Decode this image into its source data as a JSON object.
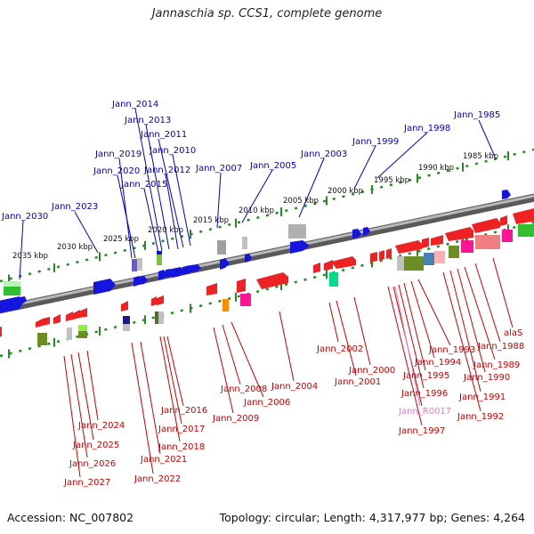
{
  "title": "Jannaschia sp. CCS1, complete genome",
  "footer": {
    "accession": "Accession: NC_007802",
    "stats": "Topology: circular; Length: 4,317,977 bp; Genes: 4,264"
  },
  "colors": {
    "backbone": "#8a8a8a",
    "ruler": "#228b22",
    "forward_label": "#0000cc",
    "reverse_label": "#cc0000",
    "rna_label": "#e080c0"
  },
  "ruler_labels": [
    "2035 kbp",
    "2030 kbp",
    "2025 kbp",
    "2020 kbp",
    "2015 kbp",
    "2010 kbp",
    "2005 kbp",
    "2000 kbp",
    "1995 kbp",
    "1990 kbp",
    "1985 kbp"
  ],
  "forward_genes": [
    "Jann_2030",
    "Jann_2023",
    "Jann_2020",
    "Jann_2019",
    "Jann_2015",
    "Jann_2014",
    "Jann_2013",
    "Jann_2012",
    "Jann_2011",
    "Jann_2010",
    "Jann_2007",
    "Jann_2005",
    "Jann_2003",
    "Jann_1999",
    "Jann_1998",
    "Jann_1985"
  ],
  "reverse_genes": [
    "Jann_2027",
    "Jann_2026",
    "Jann_2025",
    "Jann_2024",
    "Jann_2022",
    "Jann_2021",
    "Jann_2018",
    "Jann_2017",
    "Jann_2016",
    "Jann_2009",
    "Jann_2008",
    "Jann_2006",
    "Jann_2004",
    "Jann_2002",
    "Jann_2001",
    "Jann_2000",
    "Jann_1997",
    "Jann_R0017",
    "Jann_1996",
    "Jann_1995",
    "Jann_1994",
    "Jann_1993",
    "Jann_1992",
    "Jann_1991",
    "Jann_1990",
    "Jann_1989",
    "Jann_1988",
    "alaS"
  ]
}
